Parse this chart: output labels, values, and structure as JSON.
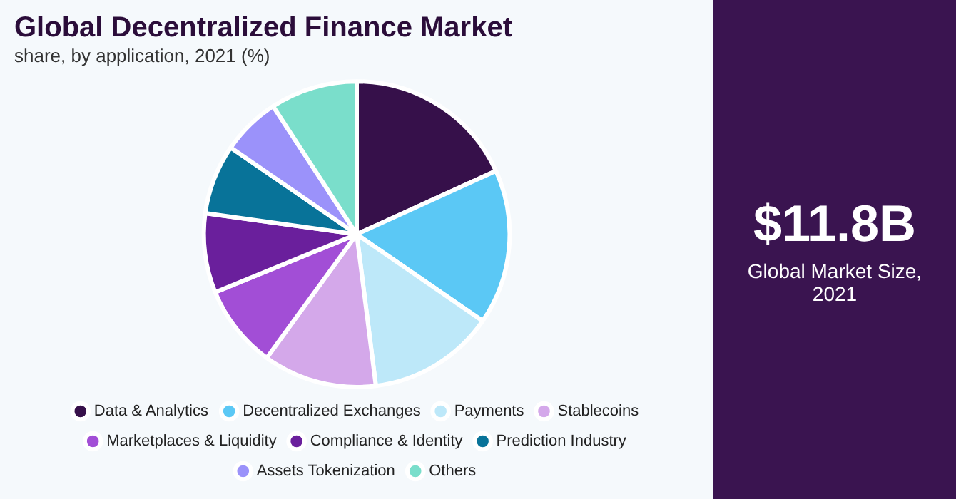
{
  "chart_data": {
    "type": "pie",
    "title": "Global Decentralized Finance Market",
    "subtitle": "share, by application, 2021 (%)",
    "categories": [
      "Data & Analytics",
      "Decentralized Exchanges",
      "Payments",
      "Stablecoins",
      "Marketplaces & Liquidity",
      "Compliance & Identity",
      "Prediction Industry",
      "Assets Tokenization",
      "Others"
    ],
    "values": [
      18.2,
      16.4,
      13.4,
      12.0,
      8.8,
      8.4,
      7.4,
      6.2,
      9.2
    ],
    "colors": [
      "#36104a",
      "#5bc8f5",
      "#bde8f9",
      "#d4a8ea",
      "#a24ed6",
      "#6a1f9c",
      "#087399",
      "#9b92fa",
      "#7adecb"
    ],
    "legend": "bottom",
    "annotations": [
      "$11.8B",
      "Global Market Size, 2021"
    ]
  }
}
